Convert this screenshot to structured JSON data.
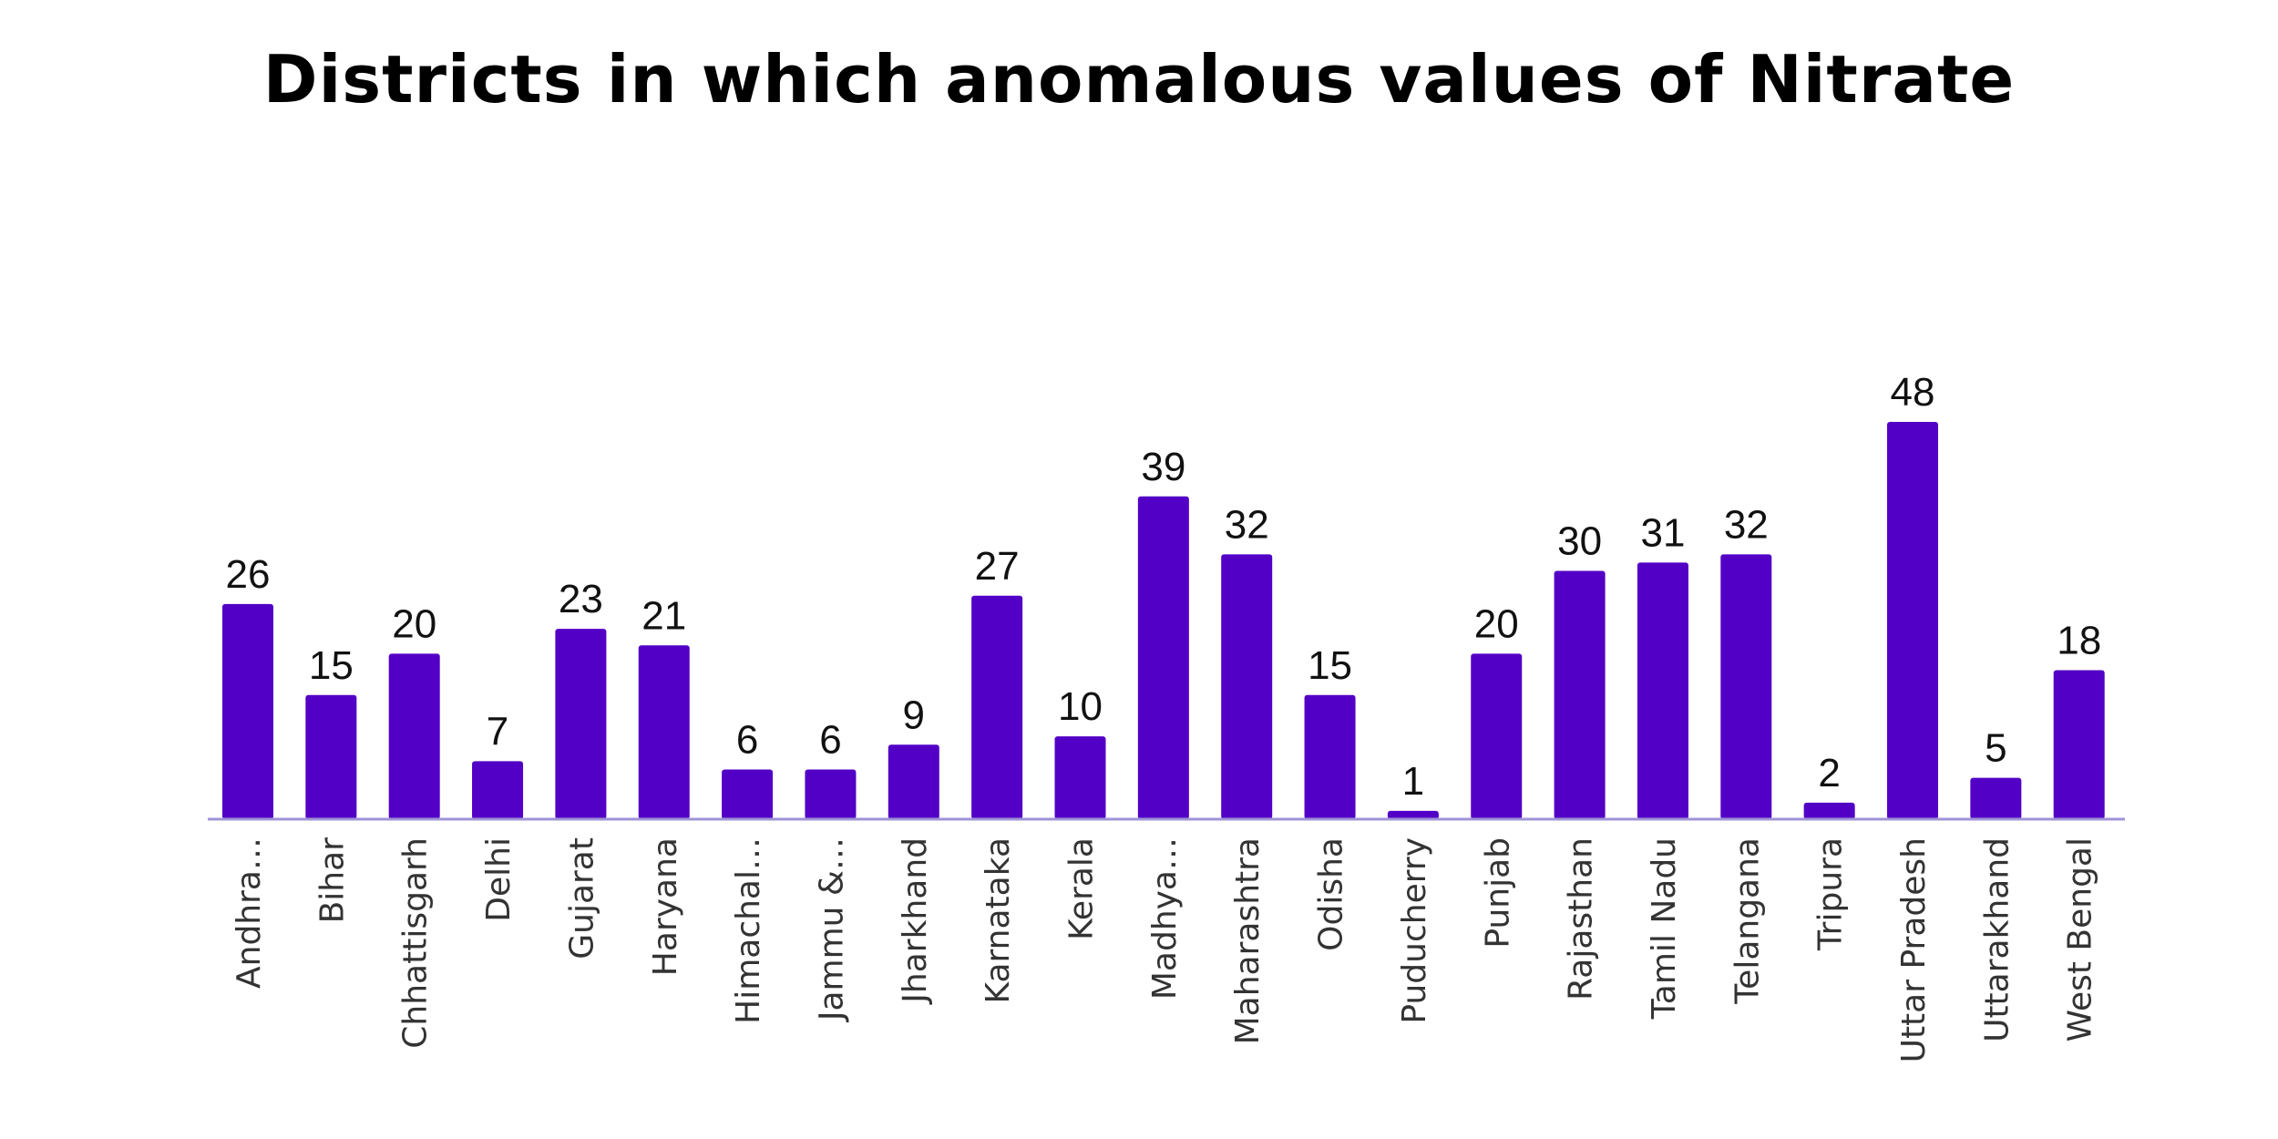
{
  "chart_data": {
    "type": "bar",
    "title": "Districts in which anomalous values of Nitrate",
    "xlabel": "",
    "ylabel": "",
    "ylim": [
      0,
      48
    ],
    "grid": false,
    "bar_color": "#5300c6",
    "axis_color": "#9f93d6",
    "categories": [
      "Andhra…",
      "Bihar",
      "Chhattisgarh",
      "Delhi",
      "Gujarat",
      "Haryana",
      "Himachal…",
      "Jammu &…",
      "Jharkhand",
      "Karnataka",
      "Kerala",
      "Madhya…",
      "Maharashtra",
      "Odisha",
      "Puducherry",
      "Punjab",
      "Rajasthan",
      "Tamil Nadu",
      "Telangana",
      "Tripura",
      "Uttar Pradesh",
      "Uttarakhand",
      "West Bengal"
    ],
    "values": [
      26,
      15,
      20,
      7,
      23,
      21,
      6,
      6,
      9,
      27,
      10,
      39,
      32,
      15,
      1,
      20,
      30,
      31,
      32,
      2,
      48,
      5,
      18
    ]
  }
}
